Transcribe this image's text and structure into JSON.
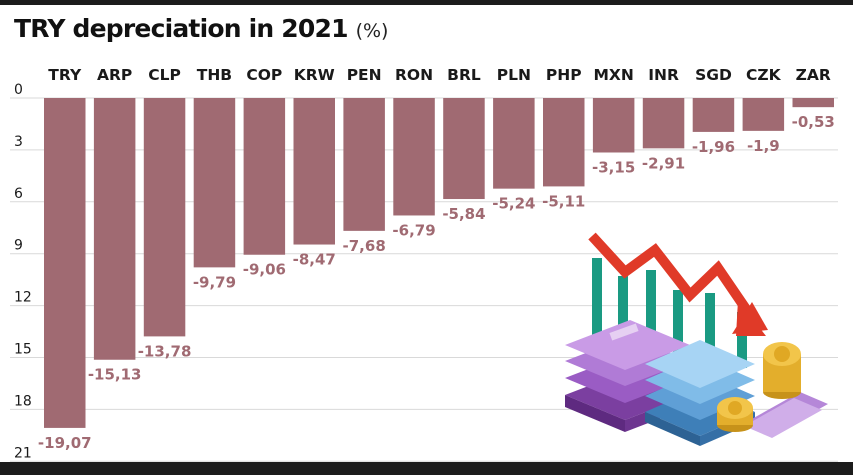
{
  "header": {
    "title": "TRY depreciation in 2021",
    "unit": "(%)"
  },
  "colors": {
    "bar": "#a06a72",
    "value_label": "#a06a72",
    "text": "#1a1a1a",
    "grid": "#d9d9d9",
    "frame": "#1c1c1c"
  },
  "chart_data": {
    "type": "bar",
    "orientation": "vertical",
    "categories": [
      "TRY",
      "ARP",
      "CLP",
      "THB",
      "COP",
      "KRW",
      "PEN",
      "RON",
      "BRL",
      "PLN",
      "PHP",
      "MXN",
      "INR",
      "SGD",
      "CZK",
      "ZAR"
    ],
    "values": [
      -19.07,
      -15.13,
      -13.78,
      -9.79,
      -9.06,
      -8.47,
      -7.68,
      -6.79,
      -5.84,
      -5.24,
      -5.11,
      -3.15,
      -2.91,
      -1.96,
      -1.9,
      -0.53
    ],
    "value_labels": [
      "-19,07",
      "-15,13",
      "-13,78",
      "-9,79",
      "-9,06",
      "-8,47",
      "-7,68",
      "-6,79",
      "-5,84",
      "-5,24",
      "-5,11",
      "-3,15",
      "-2,91",
      "-1,96",
      "-1,9",
      "-0,53"
    ],
    "title": "TRY depreciation in 2021",
    "unit": "(%)",
    "y_ticks": [
      "0",
      "3",
      "6",
      "9",
      "12",
      "15",
      "18",
      "21"
    ],
    "ylim": [
      0,
      21
    ],
    "y_direction": "down",
    "grid": true,
    "legend": "none"
  },
  "illustration": {
    "description_icons": [
      "trend-down-arrow-icon",
      "banknote-stack-icon",
      "coin-stack-icon"
    ]
  }
}
